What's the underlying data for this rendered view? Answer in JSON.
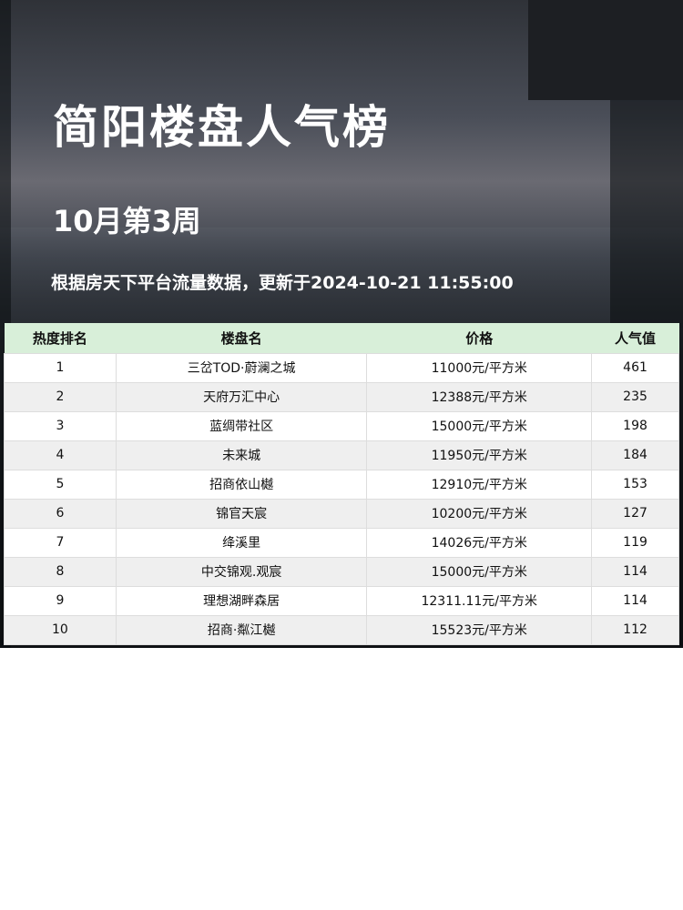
{
  "title": "简阳楼盘人气榜",
  "week": "10月第3周",
  "subtitle": "根据房天下平台流量数据，更新于2024-10-21 11:55:00",
  "table": {
    "headers": [
      "热度排名",
      "楼盘名",
      "价格",
      "人气值"
    ],
    "rows": [
      [
        "1",
        "三岔TOD·蔚澜之城",
        "11000元/平方米",
        "461"
      ],
      [
        "2",
        "天府万汇中心",
        "12388元/平方米",
        "235"
      ],
      [
        "3",
        "蓝绸带社区",
        "15000元/平方米",
        "198"
      ],
      [
        "4",
        "未来城",
        "11950元/平方米",
        "184"
      ],
      [
        "5",
        "招商依山樾",
        "12910元/平方米",
        "153"
      ],
      [
        "6",
        "锦官天宸",
        "10200元/平方米",
        "127"
      ],
      [
        "7",
        "绛溪里",
        "14026元/平方米",
        "119"
      ],
      [
        "8",
        "中交锦观.观宸",
        "15000元/平方米",
        "114"
      ],
      [
        "9",
        "理想湖畔森居",
        "12311.11元/平方米",
        "114"
      ],
      [
        "10",
        "招商·粼江樾",
        "15523元/平方米",
        "112"
      ]
    ]
  },
  "colors": {
    "header_bg": "#d8efd9",
    "alt_row": "#efefef"
  }
}
